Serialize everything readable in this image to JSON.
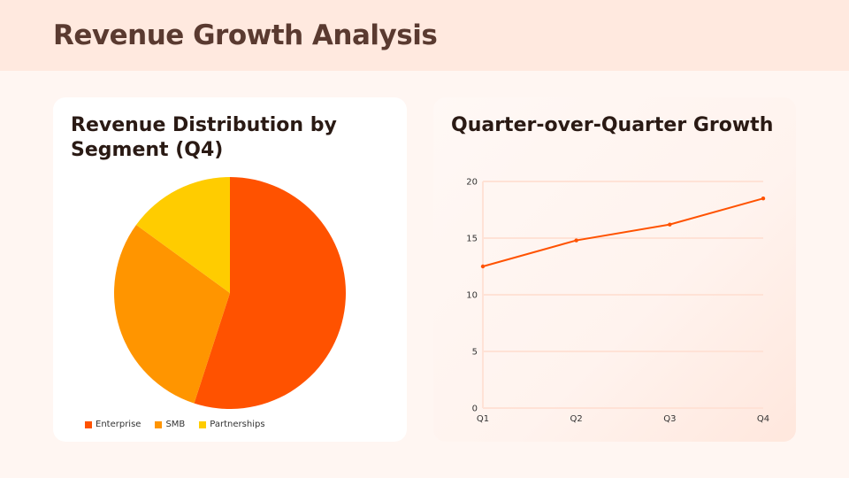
{
  "header": {
    "title": "Revenue Growth Analysis"
  },
  "chart_data": [
    {
      "type": "pie",
      "title": "Revenue Distribution by Segment (Q4)",
      "categories": [
        "Enterprise",
        "SMB",
        "Partnerships"
      ],
      "values": [
        55,
        30,
        15
      ],
      "colors": [
        "#ff5200",
        "#ff9500",
        "#ffcc00"
      ],
      "legend": "bottom"
    },
    {
      "type": "line",
      "title": "Quarter-over-Quarter Growth",
      "categories": [
        "Q1",
        "Q2",
        "Q3",
        "Q4"
      ],
      "values": [
        12.5,
        14.8,
        16.2,
        18.5
      ],
      "ylim": [
        0,
        20
      ],
      "yticks": [
        "0",
        "5",
        "10",
        "15",
        "20"
      ],
      "color": "#ff5200",
      "grid": true
    }
  ]
}
